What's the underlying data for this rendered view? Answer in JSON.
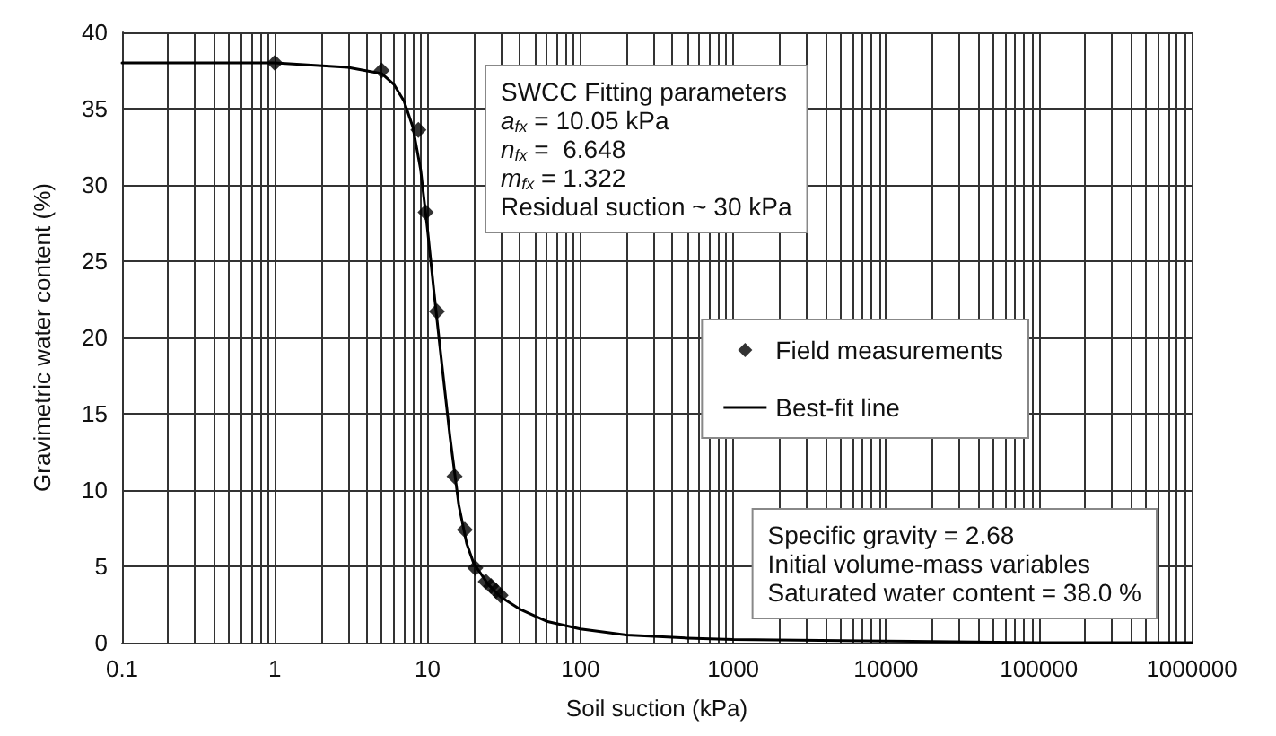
{
  "chart_data": {
    "type": "scatter",
    "xlabel": "Soil suction (kPa)",
    "ylabel": "Gravimetric water content (%)",
    "log": "x",
    "xlim": [
      0.1,
      1000000
    ],
    "xticks": [
      0.1,
      1,
      10,
      100,
      1000,
      10000,
      100000,
      1000000
    ],
    "ylim": [
      0,
      40
    ],
    "yticks": [
      0,
      5,
      10,
      15,
      20,
      25,
      30,
      35,
      40
    ],
    "grid": true,
    "legend": "right",
    "series": [
      {
        "name": "Field measurements",
        "marker": "diamond",
        "color": "#000000",
        "x": [
          1,
          5,
          8.7,
          9.7,
          11.5,
          15,
          17.5,
          20.5,
          24,
          26,
          28,
          30
        ],
        "values": [
          38,
          37.5,
          33.6,
          28.2,
          21.7,
          10.9,
          7.4,
          4.9,
          4,
          3.7,
          3.4,
          3.1
        ]
      },
      {
        "name": "Best-fit line",
        "type": "line",
        "marker": "none",
        "line_style": "solid",
        "color": "#000000",
        "x": [
          0.1,
          1,
          3,
          5,
          6,
          7,
          8,
          9,
          10,
          11,
          12,
          14,
          16,
          18,
          20,
          25,
          30,
          40,
          60,
          100,
          200,
          500,
          1000,
          10000,
          100000,
          1000000
        ],
        "values": [
          38,
          38,
          37.7,
          37.3,
          36.6,
          35.5,
          33.8,
          31,
          27,
          23,
          19.5,
          13.5,
          9,
          6.5,
          5.2,
          3.8,
          3,
          2.2,
          1.4,
          0.9,
          0.5,
          0.3,
          0.2,
          0.1,
          0,
          0
        ]
      }
    ],
    "annotations": [
      "SWCC Fitting parameters\na$_{fx}$ = 10.05 kPa\nn$_{fx}$ =  6.648\nm$_{fx}$ = 1.322\nResidual suction ~ 30 kPa",
      "Specific gravity = 2.68\nInitial volume-mass variables\nSaturated water content = 38.0 %"
    ]
  }
}
